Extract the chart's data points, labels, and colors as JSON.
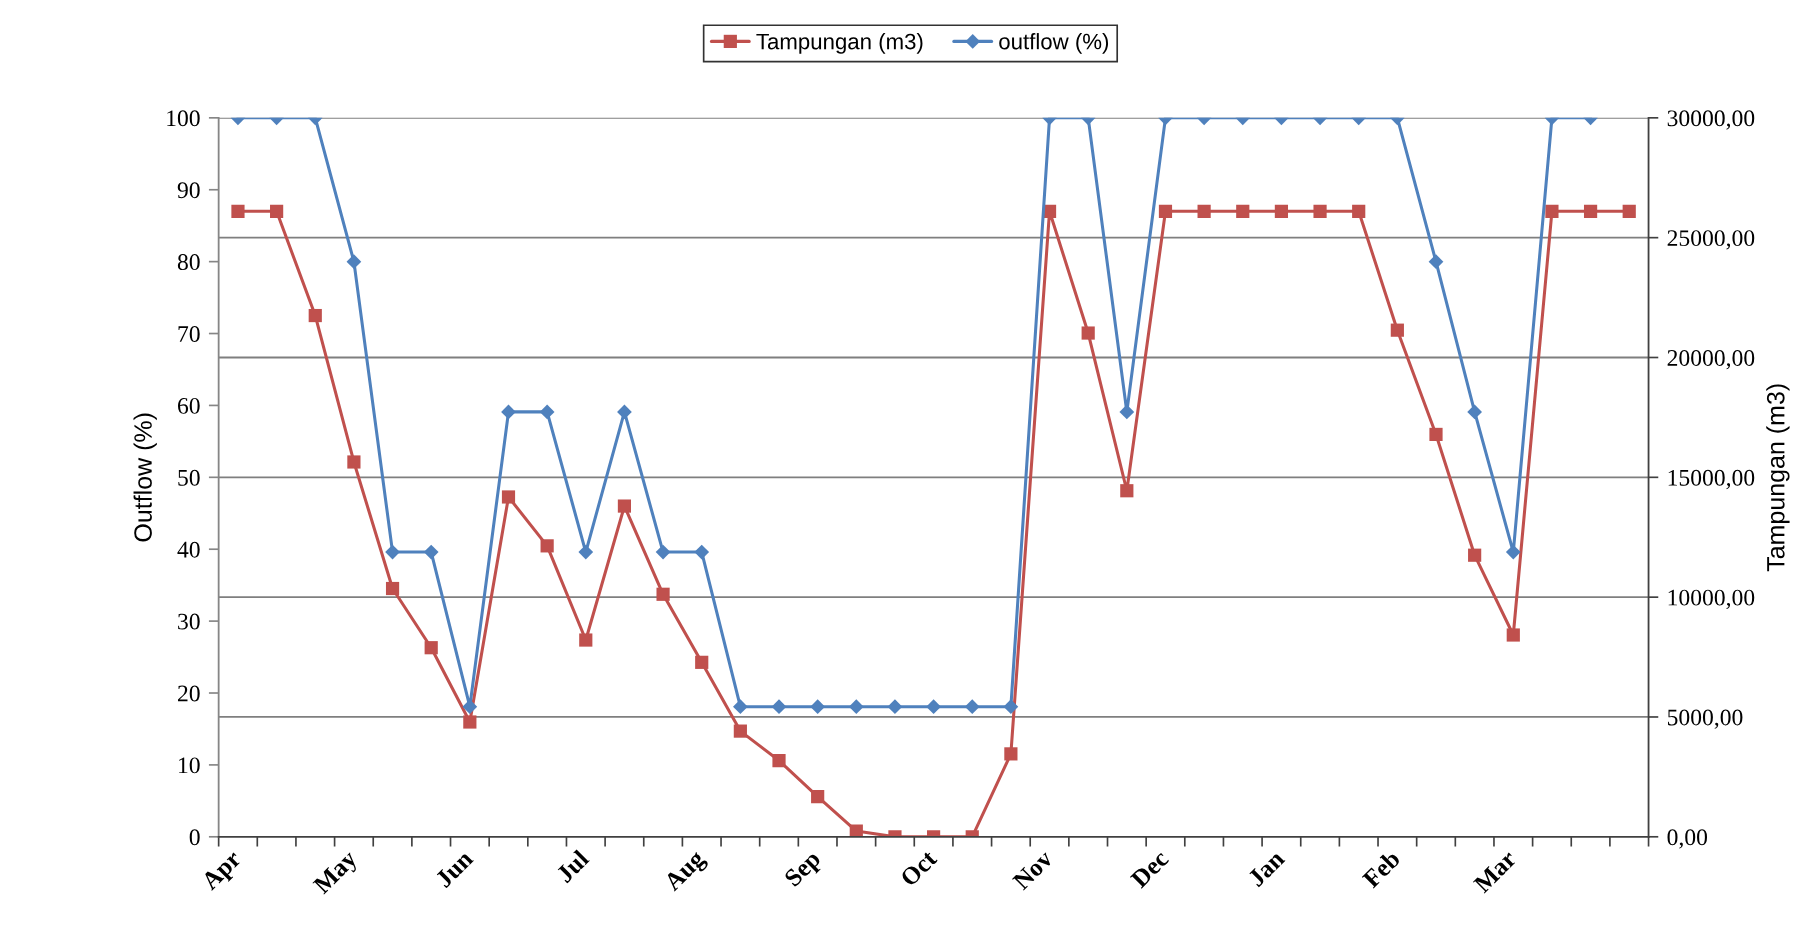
{
  "chart_data": {
    "type": "line",
    "categories": [
      "Apr",
      null,
      null,
      "May",
      null,
      null,
      "Jun",
      null,
      null,
      "Jul",
      null,
      null,
      "Aug",
      null,
      null,
      "Sep",
      null,
      null,
      "Oct",
      null,
      null,
      "Nov",
      null,
      null,
      "Dec",
      null,
      null,
      "Jan",
      null,
      null,
      "Feb",
      null,
      null,
      "Mar",
      null,
      null,
      null
    ],
    "series": [
      {
        "name": "Tampungan (m3)",
        "color": "#c0504d",
        "axis": "y2",
        "marker": "square",
        "values": [
          26100,
          26100,
          21750,
          15640,
          10360,
          7890,
          4790,
          14180,
          12140,
          8210,
          13800,
          10120,
          7280,
          4410,
          3180,
          1680,
          240,
          0,
          0,
          0,
          3460,
          26100,
          21020,
          14440,
          26100,
          26100,
          26100,
          26100,
          26100,
          26100,
          21140,
          16790,
          11750,
          8420,
          26100,
          26100,
          26100
        ]
      },
      {
        "name": "outflow (%)",
        "color": "#4f81bd",
        "marker": "diamond",
        "values": [
          100,
          100,
          100,
          80,
          39.6,
          39.6,
          18.1,
          59.1,
          59.1,
          39.6,
          59.1,
          39.6,
          39.6,
          18.1,
          18.1,
          18.1,
          18.1,
          18.1,
          18.1,
          18.1,
          18.1,
          100,
          100,
          59.1,
          100,
          100,
          100,
          100,
          100,
          100,
          100,
          80,
          59.1,
          39.6,
          100,
          100,
          null
        ]
      }
    ],
    "ylabel": "Outflow (%)",
    "y2label": "Tampungan (m3)",
    "ylim": [
      0,
      100
    ],
    "yticks": [
      0,
      10,
      20,
      30,
      40,
      50,
      60,
      70,
      80,
      90,
      100
    ],
    "y2lim": [
      0,
      30000
    ],
    "y2ticks": [
      {
        "value": 0,
        "label": "0,00"
      },
      {
        "value": 5000,
        "label": "5000,00"
      },
      {
        "value": 10000,
        "label": "10000,00"
      },
      {
        "value": 15000,
        "label": "15000,00"
      },
      {
        "value": 20000,
        "label": "20000,00"
      },
      {
        "value": 25000,
        "label": "25000,00"
      },
      {
        "value": 30000,
        "label": "30000,00"
      }
    ],
    "grid": "y2",
    "legend": "top"
  }
}
